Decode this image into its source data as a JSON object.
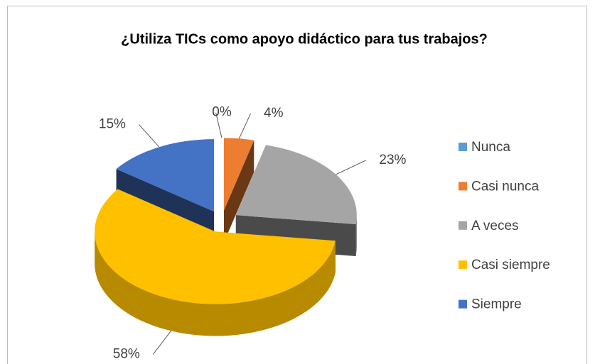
{
  "chart_data": {
    "type": "pie3d",
    "title": "¿Utiliza TICs como apoyo didáctico para tus trabajos?",
    "categories": [
      "Nunca",
      "Casi nunca",
      "A veces",
      "Casi siempre",
      "Siempre"
    ],
    "values": [
      0,
      4,
      23,
      58,
      15
    ],
    "value_labels": [
      "0%",
      "4%",
      "23%",
      "58%",
      "15%"
    ],
    "colors": [
      "#5b9bd5",
      "#ed7d31",
      "#a5a5a5",
      "#ffc000",
      "#4472c4"
    ],
    "legend": "right"
  }
}
